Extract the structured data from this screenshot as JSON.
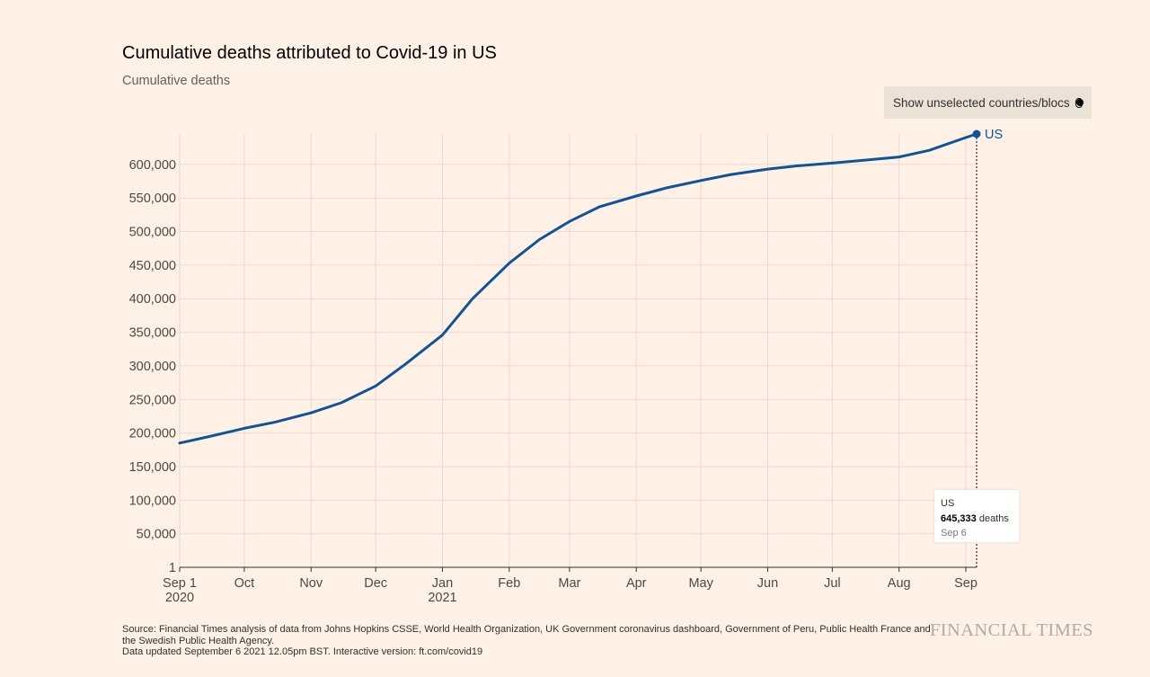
{
  "title": "Cumulative deaths attributed to Covid-19 in US",
  "subtitle": "Cumulative deaths",
  "toggle": {
    "label": "Show unselected countries/blocs"
  },
  "tooltip": {
    "country": "US",
    "value": "645,333",
    "unit": "deaths",
    "date": "Sep 6"
  },
  "source": {
    "line1": "Source: Financial Times analysis of data from Johns Hopkins CSSE, World Health Organization, UK Government coronavirus dashboard, Government of Peru, Public Health France and the Swedish Public Health Agency.",
    "line2": "Data updated September 6 2021 12.05pm BST. Interactive version: ft.com/covid19"
  },
  "brand": "FINANCIAL TIMES",
  "colors": {
    "background": "#FFF1E5",
    "line": "#0F5499",
    "grid": "#E6DCD3",
    "axis": "#33302E"
  },
  "chart_data": {
    "type": "line",
    "title": "Cumulative deaths attributed to Covid-19 in US",
    "ylabel": "Cumulative deaths",
    "xlabel": "",
    "xlim": [
      "2020-09-01",
      "2021-09-06"
    ],
    "ylim": [
      1,
      645333
    ],
    "y_ticks": [
      {
        "value": 1,
        "label": "1"
      },
      {
        "value": 50000,
        "label": "50,000"
      },
      {
        "value": 100000,
        "label": "100,000"
      },
      {
        "value": 150000,
        "label": "150,000"
      },
      {
        "value": 200000,
        "label": "200,000"
      },
      {
        "value": 250000,
        "label": "250,000"
      },
      {
        "value": 300000,
        "label": "300,000"
      },
      {
        "value": 350000,
        "label": "350,000"
      },
      {
        "value": 400000,
        "label": "400,000"
      },
      {
        "value": 450000,
        "label": "450,000"
      },
      {
        "value": 500000,
        "label": "500,000"
      },
      {
        "value": 550000,
        "label": "550,000"
      },
      {
        "value": 600000,
        "label": "600,000"
      }
    ],
    "x_ticks": [
      {
        "date": "2020-09-01",
        "label": "Sep 1",
        "sublabel": "2020"
      },
      {
        "date": "2020-10-01",
        "label": "Oct",
        "sublabel": ""
      },
      {
        "date": "2020-11-01",
        "label": "Nov",
        "sublabel": ""
      },
      {
        "date": "2020-12-01",
        "label": "Dec",
        "sublabel": ""
      },
      {
        "date": "2021-01-01",
        "label": "Jan",
        "sublabel": "2021"
      },
      {
        "date": "2021-02-01",
        "label": "Feb",
        "sublabel": ""
      },
      {
        "date": "2021-03-01",
        "label": "Mar",
        "sublabel": ""
      },
      {
        "date": "2021-04-01",
        "label": "Apr",
        "sublabel": ""
      },
      {
        "date": "2021-05-01",
        "label": "May",
        "sublabel": ""
      },
      {
        "date": "2021-06-01",
        "label": "Jun",
        "sublabel": ""
      },
      {
        "date": "2021-07-01",
        "label": "Jul",
        "sublabel": ""
      },
      {
        "date": "2021-08-01",
        "label": "Aug",
        "sublabel": ""
      },
      {
        "date": "2021-09-01",
        "label": "Sep",
        "sublabel": ""
      }
    ],
    "grid": true,
    "series": [
      {
        "name": "US",
        "color": "#0F5499",
        "points": [
          {
            "x": "2020-09-01",
            "y": 185000
          },
          {
            "x": "2020-09-15",
            "y": 195000
          },
          {
            "x": "2020-10-01",
            "y": 207000
          },
          {
            "x": "2020-10-15",
            "y": 216000
          },
          {
            "x": "2020-11-01",
            "y": 230000
          },
          {
            "x": "2020-11-15",
            "y": 245000
          },
          {
            "x": "2020-12-01",
            "y": 270000
          },
          {
            "x": "2020-12-15",
            "y": 303000
          },
          {
            "x": "2021-01-01",
            "y": 346000
          },
          {
            "x": "2021-01-15",
            "y": 400000
          },
          {
            "x": "2021-02-01",
            "y": 453000
          },
          {
            "x": "2021-02-15",
            "y": 488000
          },
          {
            "x": "2021-03-01",
            "y": 515000
          },
          {
            "x": "2021-03-15",
            "y": 537000
          },
          {
            "x": "2021-04-01",
            "y": 553000
          },
          {
            "x": "2021-04-15",
            "y": 565000
          },
          {
            "x": "2021-05-01",
            "y": 576000
          },
          {
            "x": "2021-05-15",
            "y": 585000
          },
          {
            "x": "2021-06-01",
            "y": 593000
          },
          {
            "x": "2021-06-15",
            "y": 598000
          },
          {
            "x": "2021-07-01",
            "y": 602000
          },
          {
            "x": "2021-07-15",
            "y": 606000
          },
          {
            "x": "2021-08-01",
            "y": 611000
          },
          {
            "x": "2021-08-15",
            "y": 621000
          },
          {
            "x": "2021-09-01",
            "y": 640000
          },
          {
            "x": "2021-09-06",
            "y": 645333
          }
        ]
      }
    ]
  }
}
